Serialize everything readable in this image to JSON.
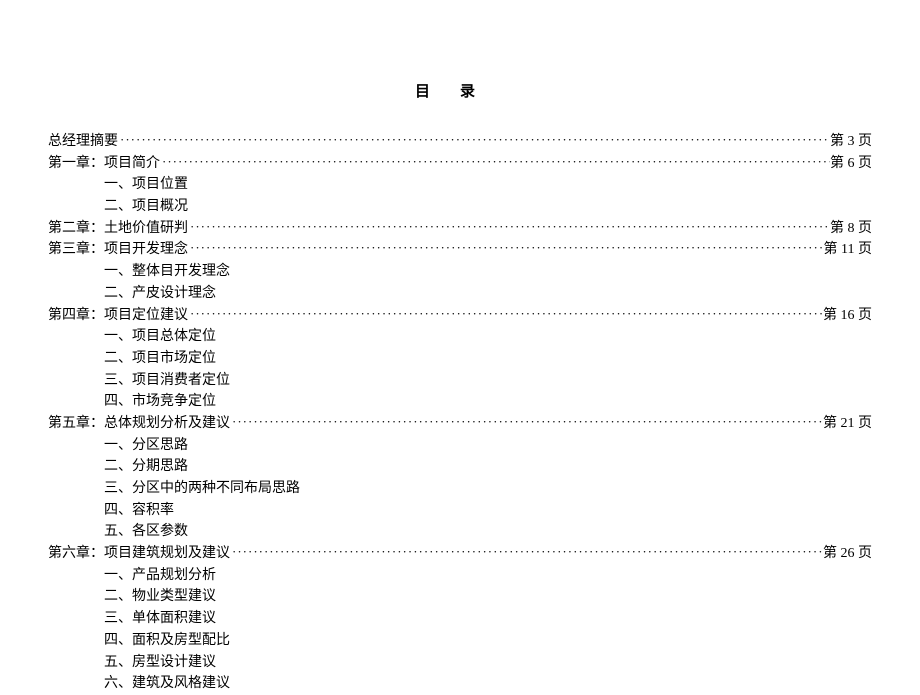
{
  "title": "目录",
  "entries": [
    {
      "label": "总经理摘要",
      "page": "第 3 页"
    },
    {
      "label": "第一章：项目简介",
      "page": "第 6 页",
      "subs": [
        "一、项目位置",
        "二、项目概况"
      ]
    },
    {
      "label": "第二章：土地价值研判",
      "page": "第 8 页"
    },
    {
      "label": "第三章：项目开发理念",
      "page": "第 11 页",
      "subs": [
        "一、整体目开发理念",
        "二、产皮设计理念"
      ]
    },
    {
      "label": "第四章：项目定位建议",
      "page": "第 16 页",
      "subs": [
        "一、项目总体定位",
        "二、项目市场定位",
        "三、项目消费者定位",
        "四、市场竞争定位"
      ]
    },
    {
      "label": "第五章：总体规划分析及建议",
      "page": "第 21 页",
      "subs": [
        "一、分区思路",
        "二、分期思路",
        "三、分区中的两种不同布局思路",
        "四、容积率",
        "五、各区参数"
      ]
    },
    {
      "label": "第六章：项目建筑规划及建议",
      "page": "第 26 页",
      "subs": [
        "一、产品规划分析",
        "二、物业类型建议",
        "三、单体面积建议",
        "四、面积及房型配比",
        "五、房型设计建议",
        "六、建筑及风格建议"
      ]
    }
  ]
}
